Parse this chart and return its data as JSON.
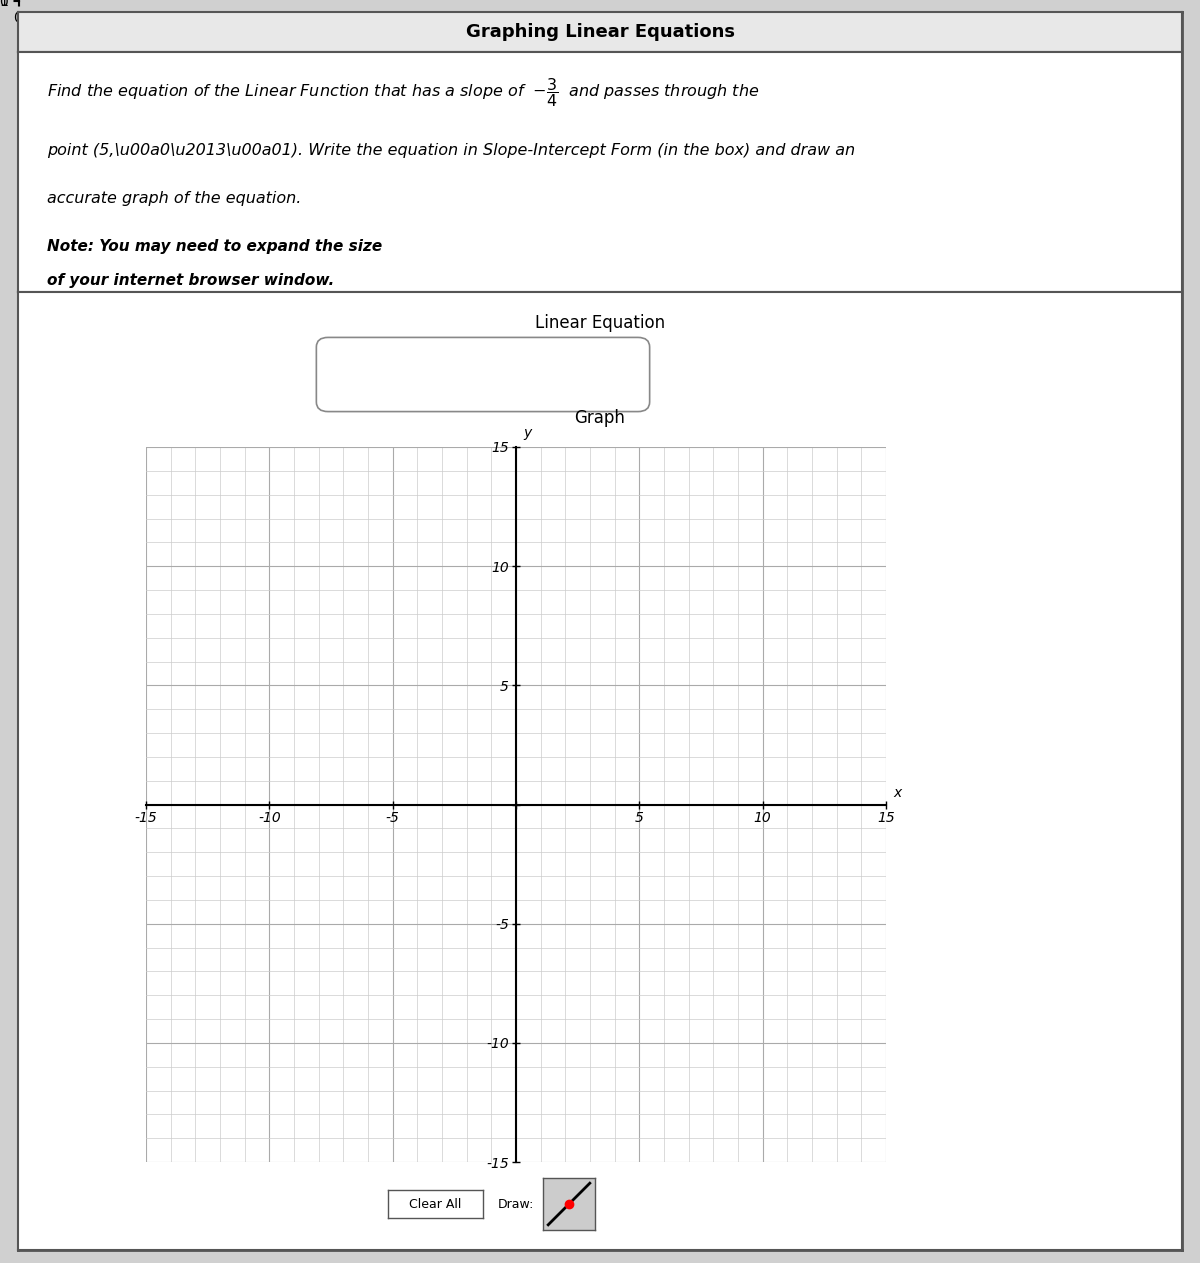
{
  "title": "Graphing Linear Equations",
  "instr_line1": "Find the equation of the Linear Function that has a slope of  $-\\dfrac{3}{4}$  and passes through the",
  "instr_line2": "point (5,\\u00a0\\u2013\\u00a01). Write the equation in Slope-Intercept Form (in the box) and draw an",
  "instr_line3": "accurate graph of the equation.",
  "note_line1": "Note: You may need to expand the size",
  "note_line2": "of your internet browser window.",
  "section2_title": "Linear Equation",
  "graph_label": "Graph",
  "x_label": "x",
  "y_label": "y",
  "x_min": -15,
  "x_max": 15,
  "y_min": -15,
  "y_max": 15,
  "tick_interval": 5,
  "minor_grid_color": "#cccccc",
  "major_grid_color": "#aaaaaa",
  "axis_color": "#000000",
  "bg_color": "#ffffff",
  "title_bar_color": "#e8e8e8",
  "button1_label": "Clear All",
  "button2_label": "Draw:",
  "font_size_title": 13,
  "font_size_body": 11.5,
  "font_size_note": 11,
  "font_size_section": 12,
  "font_size_tick": 10
}
